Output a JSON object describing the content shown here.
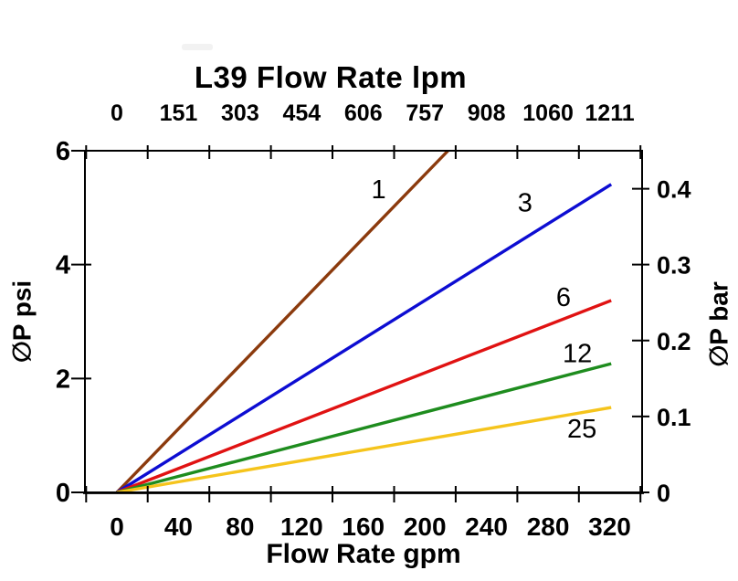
{
  "title": {
    "text": "L39 Flow Rate lpm"
  },
  "axis_labels": {
    "bottom": "Flow Rate gpm",
    "left": "∅P psi",
    "right": "∅P bar"
  },
  "chart_data": {
    "type": "line",
    "title": "L39 Flow Rate lpm",
    "xlabel": "Flow Rate gpm",
    "xlabel_top": "L39 Flow Rate lpm",
    "ylabel_left": "∅P psi",
    "ylabel_right": "∅P bar",
    "grid": false,
    "legend": "inline-curve-labels",
    "x_axis_bottom": {
      "unit": "gpm",
      "ticks": [
        0,
        40,
        80,
        120,
        160,
        200,
        240,
        280,
        320
      ]
    },
    "x_axis_top": {
      "unit": "lpm",
      "ticks": [
        0,
        151,
        303,
        454,
        606,
        757,
        908,
        1060,
        1211
      ]
    },
    "y_axis_left": {
      "unit": "psi",
      "ticks": [
        0,
        2,
        4,
        6
      ],
      "range": [
        0,
        6
      ]
    },
    "y_axis_right": {
      "unit": "bar",
      "ticks": [
        0,
        0.1,
        0.2,
        0.3,
        0.4
      ],
      "range": [
        0,
        0.45
      ]
    },
    "series": [
      {
        "name": "1",
        "color": "#8B3A0D",
        "points_gpm_psi": [
          [
            0,
            0
          ],
          [
            215,
            6.0
          ]
        ],
        "label_at_gpm_psi": [
          170,
          5.33
        ]
      },
      {
        "name": "3",
        "color": "#0D0DD2",
        "points_gpm_psi": [
          [
            0,
            0
          ],
          [
            321,
            5.41
          ]
        ],
        "label_at_gpm_psi": [
          265,
          5.09
        ]
      },
      {
        "name": "6",
        "color": "#E01212",
        "points_gpm_psi": [
          [
            0,
            0
          ],
          [
            321,
            3.37
          ]
        ],
        "label_at_gpm_psi": [
          290,
          3.43
        ]
      },
      {
        "name": "12",
        "color": "#1E8C1E",
        "points_gpm_psi": [
          [
            0,
            0
          ],
          [
            321,
            2.26
          ]
        ],
        "label_at_gpm_psi": [
          299,
          2.45
        ]
      },
      {
        "name": "25",
        "color": "#F5C41C",
        "points_gpm_psi": [
          [
            0,
            0
          ],
          [
            321,
            1.49
          ]
        ],
        "label_at_gpm_psi": [
          302,
          1.12
        ]
      }
    ]
  }
}
